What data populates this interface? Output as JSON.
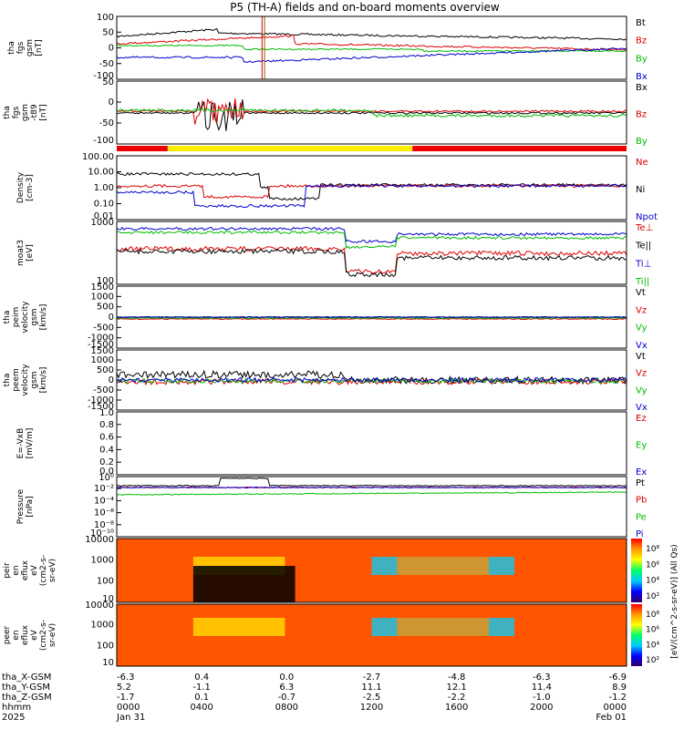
{
  "title": "P5 (TH-A) fields and on-board moments overview",
  "chart_data": {
    "type": "line",
    "x_ticks": [
      "0000",
      "0400",
      "0800",
      "1200",
      "1600",
      "2000",
      "0000"
    ],
    "x_ephemeris": [
      {
        "label": "tha_X-GSM",
        "values": [
          "-6.3",
          "0.4",
          "0.0",
          "-2.7",
          "-4.8",
          "-6.3",
          "-6.9"
        ]
      },
      {
        "label": "tha_Y-GSM",
        "values": [
          "5.2",
          "-1.1",
          "6.3",
          "11.1",
          "12.1",
          "11.4",
          "8.9"
        ]
      },
      {
        "label": "tha_Z-GSM",
        "values": [
          "-1.7",
          "0.1",
          "-0.7",
          "-2.5",
          "-2.2",
          "-1.0",
          "-1.2"
        ]
      },
      {
        "label": "hhmm",
        "values": [
          "0000",
          "0400",
          "0800",
          "1200",
          "1600",
          "2000",
          "0000"
        ]
      },
      {
        "label": "2025",
        "values": [
          "Jan 31",
          "",
          "",
          "",
          "",
          "",
          "Feb 01"
        ]
      }
    ],
    "panels": [
      {
        "ylabel": [
          "tha",
          "fgs",
          "gsm",
          "[nT]"
        ],
        "ytick_labels": [
          "100",
          "50",
          "0",
          "-50",
          "-100"
        ],
        "legend": [
          {
            "name": "Bt",
            "color": "#000000"
          },
          {
            "name": "Bz",
            "color": "#dd0000"
          },
          {
            "name": "By",
            "color": "#00bb00"
          },
          {
            "name": "Bx",
            "color": "#0000cc"
          }
        ]
      },
      {
        "ylabel": [
          "tha",
          "fgs",
          "gsm",
          "-t89",
          "[nT]"
        ],
        "ytick_labels": [
          "50",
          "0",
          "-50",
          "-100"
        ],
        "legend": [
          {
            "name": "Bx",
            "color": "#000000"
          },
          {
            "name": "Bz",
            "color": "#dd0000"
          },
          {
            "name": "By",
            "color": "#00bb00"
          }
        ]
      },
      {
        "ylabel": [
          "Density",
          "[cm-3]"
        ],
        "ytick_labels": [
          "100.00",
          "10.00",
          "1.00",
          "0.10",
          "0.01"
        ],
        "legend": [
          {
            "name": "Ne",
            "color": "#dd0000"
          },
          {
            "name": "Ni",
            "color": "#000000"
          },
          {
            "name": "Npot",
            "color": "#0000cc"
          }
        ]
      },
      {
        "ylabel": [
          "moat3",
          "[eV]"
        ],
        "ytick_labels": [
          "1000",
          "100"
        ],
        "legend": [
          {
            "name": "Te⊥",
            "color": "#dd0000"
          },
          {
            "name": "Te||",
            "color": "#000000"
          },
          {
            "name": "Ti⊥",
            "color": "#0000cc"
          },
          {
            "name": "Ti||",
            "color": "#00bb00"
          }
        ]
      },
      {
        "ylabel": [
          "tha",
          "peim",
          "velocity",
          "gsm",
          "[km/s]"
        ],
        "ytick_labels": [
          "1500",
          "1000",
          "500",
          "0",
          "-500",
          "-1000",
          "-1500"
        ],
        "legend": [
          {
            "name": "Vt",
            "color": "#000000"
          },
          {
            "name": "Vz",
            "color": "#dd0000"
          },
          {
            "name": "Vy",
            "color": "#00bb00"
          },
          {
            "name": "Vx",
            "color": "#0000cc"
          }
        ]
      },
      {
        "ylabel": [
          "tha",
          "peem",
          "velocity",
          "gsm",
          "[km/s]"
        ],
        "ytick_labels": [
          "1500",
          "1000",
          "500",
          "0",
          "-500",
          "-1000",
          "-1500"
        ],
        "legend": [
          {
            "name": "Vt",
            "color": "#000000"
          },
          {
            "name": "Vz",
            "color": "#dd0000"
          },
          {
            "name": "Vy",
            "color": "#00bb00"
          },
          {
            "name": "Vx",
            "color": "#0000cc"
          }
        ]
      },
      {
        "ylabel": [
          "E=-VxB",
          "[mV/m]"
        ],
        "ytick_labels": [
          "1.0",
          "0.8",
          "0.6",
          "0.4",
          "0.2",
          "0.0"
        ],
        "legend": [
          {
            "name": "Ez",
            "color": "#dd0000"
          },
          {
            "name": "Ey",
            "color": "#00bb00"
          },
          {
            "name": "Ex",
            "color": "#0000cc"
          }
        ]
      },
      {
        "ylabel": [
          "Pressure",
          "[nPa]"
        ],
        "ytick_labels": [
          "10⁰",
          "10⁻²",
          "10⁻⁴",
          "10⁻⁶",
          "10⁻⁸",
          "10⁻¹⁰"
        ],
        "legend": [
          {
            "name": "Pt",
            "color": "#000000"
          },
          {
            "name": "Pb",
            "color": "#dd0000"
          },
          {
            "name": "Pe",
            "color": "#00bb00"
          },
          {
            "name": "Pi",
            "color": "#0000cc"
          }
        ]
      },
      {
        "ylabel": [
          "tha",
          "peir",
          "en",
          "eflux",
          "eV",
          "(cm2-s-",
          "sr-eV)"
        ],
        "ytick_labels": [
          "10000",
          "1000",
          "100",
          "10"
        ],
        "colorbar_ticks": [
          "10⁸",
          "10⁶",
          "10⁴",
          "10²"
        ]
      },
      {
        "ylabel": [
          "tha",
          "peer",
          "en",
          "eflux",
          "eV",
          "(cm2-s-",
          "sr-eV)"
        ],
        "ytick_labels": [
          "10000",
          "1000",
          "100",
          "10"
        ],
        "colorbar_ticks": [
          "10⁸",
          "10⁶",
          "10⁴",
          "10²"
        ]
      }
    ],
    "colorbar_label": "[eV/(cm^2-s-sr-eV)] (All Qs)",
    "colors": {
      "black": "#000000",
      "red": "#dd0000",
      "green": "#00bb00",
      "blue": "#0000cc",
      "yellow": "#ffee00"
    }
  }
}
